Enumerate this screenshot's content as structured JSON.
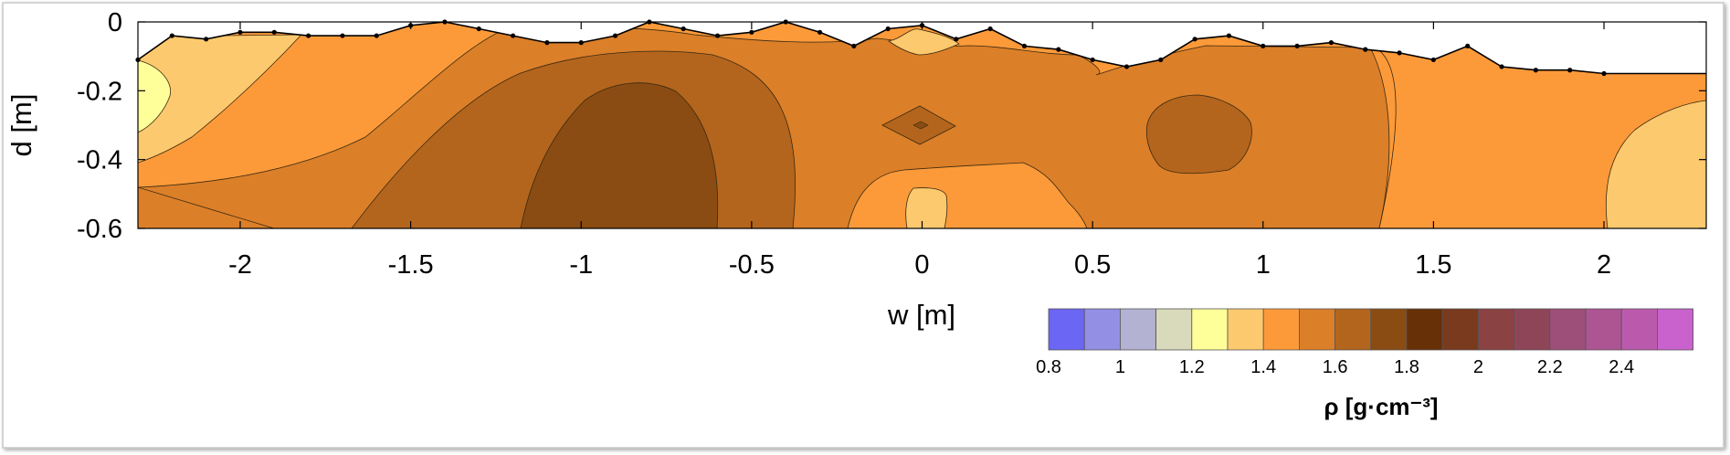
{
  "chart_data": {
    "type": "heatmap",
    "subtype": "filled-contour",
    "xlabel": "w [m]",
    "ylabel": "d [m]",
    "xlim": [
      -2.3,
      2.3
    ],
    "ylim": [
      -0.6,
      0
    ],
    "x_ticks": [
      -2,
      -1.5,
      -1,
      -0.5,
      0,
      0.5,
      1,
      1.5,
      2
    ],
    "x_tick_labels": [
      "-2",
      "-1.5",
      "-1",
      "-0.5",
      "0",
      "0.5",
      "1",
      "1.5",
      "2"
    ],
    "y_ticks": [
      0,
      -0.2,
      -0.4,
      -0.6
    ],
    "y_tick_labels": [
      "0",
      "-0.2",
      "-0.4",
      "-0.6"
    ],
    "surface_points": [
      [
        -2.3,
        -0.11
      ],
      [
        -2.2,
        -0.04
      ],
      [
        -2.1,
        -0.05
      ],
      [
        -2.0,
        -0.03
      ],
      [
        -1.9,
        -0.03
      ],
      [
        -1.8,
        -0.04
      ],
      [
        -1.7,
        -0.04
      ],
      [
        -1.6,
        -0.04
      ],
      [
        -1.5,
        -0.01
      ],
      [
        -1.4,
        0.0
      ],
      [
        -1.3,
        -0.02
      ],
      [
        -1.2,
        -0.04
      ],
      [
        -1.1,
        -0.06
      ],
      [
        -1.0,
        -0.06
      ],
      [
        -0.9,
        -0.04
      ],
      [
        -0.8,
        0.0
      ],
      [
        -0.7,
        -0.02
      ],
      [
        -0.6,
        -0.04
      ],
      [
        -0.5,
        -0.03
      ],
      [
        -0.4,
        0.0
      ],
      [
        -0.3,
        -0.03
      ],
      [
        -0.2,
        -0.07
      ],
      [
        -0.1,
        -0.02
      ],
      [
        0.0,
        -0.01
      ],
      [
        0.1,
        -0.05
      ],
      [
        0.2,
        -0.02
      ],
      [
        0.3,
        -0.07
      ],
      [
        0.4,
        -0.08
      ],
      [
        0.5,
        -0.11
      ],
      [
        0.6,
        -0.13
      ],
      [
        0.7,
        -0.11
      ],
      [
        0.8,
        -0.05
      ],
      [
        0.9,
        -0.04
      ],
      [
        1.0,
        -0.07
      ],
      [
        1.1,
        -0.07
      ],
      [
        1.2,
        -0.06
      ],
      [
        1.3,
        -0.08
      ],
      [
        1.4,
        -0.09
      ],
      [
        1.5,
        -0.11
      ],
      [
        1.6,
        -0.07
      ],
      [
        1.7,
        -0.13
      ],
      [
        1.8,
        -0.14
      ],
      [
        1.9,
        -0.14
      ],
      [
        2.0,
        -0.15
      ],
      [
        2.3,
        -0.15
      ]
    ],
    "colorbar": {
      "title": "ρ [g·cm⁻³]",
      "min": 0.8,
      "max": 2.6,
      "step": 0.1,
      "tick_values": [
        0.8,
        1,
        1.2,
        1.4,
        1.6,
        1.8,
        2,
        2.2,
        2.4
      ],
      "tick_labels": [
        "0.8",
        "1",
        "1.2",
        "1.4",
        "1.6",
        "1.8",
        "2",
        "2.2",
        "2.4"
      ],
      "colors": [
        "#6b66f4",
        "#928fe4",
        "#b3b2d2",
        "#d9d9bb",
        "#ffff9a",
        "#fdc96e",
        "#fc9a3a",
        "#db7f29",
        "#b4651d",
        "#8a4c12",
        "#673007",
        "#7a3a1e",
        "#8b4242",
        "#8f4558",
        "#9d4f79",
        "#ad5493",
        "#bb5aad",
        "#c962cc"
      ]
    },
    "regions": [
      {
        "density_range": "1.5–1.6",
        "location": "left, upper corner region"
      },
      {
        "density_range": "1.2–1.3",
        "location": "left edge, near surface"
      },
      {
        "density_range": "1.7–1.8",
        "location": "center-left, depth 0.2–0.6"
      },
      {
        "density_range": "1.8–1.9",
        "location": "core near w=-0.85"
      },
      {
        "density_range": "1.6–1.7",
        "location": "central band"
      },
      {
        "density_range": "1.5–1.6",
        "location": "bottom near w=0"
      },
      {
        "density_range": "1.4–1.5",
        "location": "near surface at w=0 and bottom at w=0"
      },
      {
        "density_range": "1.7–1.8",
        "location": "island near w=0.8, depth 0.3"
      },
      {
        "density_range": "1.5–1.6",
        "location": "right portion"
      },
      {
        "density_range": "1.4–1.5",
        "location": "right bottom corner"
      }
    ]
  }
}
